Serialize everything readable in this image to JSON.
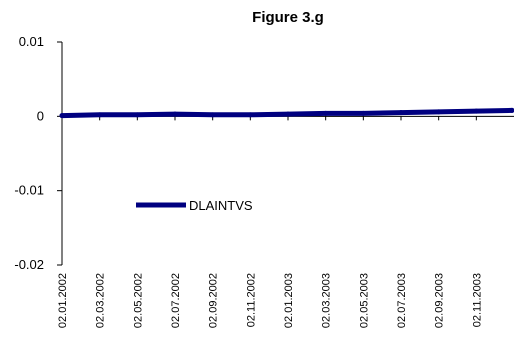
{
  "chart_data": {
    "type": "line",
    "title": "Figure 3.g",
    "xlabel": "",
    "ylabel": "",
    "ylim": [
      -0.02,
      0.01
    ],
    "yticks": [
      "0.01",
      "0",
      "-0.01",
      "-0.02"
    ],
    "yticks_values": [
      0.01,
      0,
      -0.01,
      -0.02
    ],
    "xtick_labels": [
      "02.01.2002",
      "02.03.2002",
      "02.05.2002",
      "02.07.2002",
      "02.09.2002",
      "02.11.2002",
      "02.01.2003",
      "02.03.2003",
      "02.05.2003",
      "02.07.2003",
      "02.09.2003",
      "02.11.2003"
    ],
    "grid": false,
    "legend_position": "center-left",
    "series": [
      {
        "name": "DLAINTVS",
        "color": "#000080",
        "x": [
          "02.01.2002",
          "02.03.2002",
          "02.05.2002",
          "02.07.2002",
          "02.09.2002",
          "02.11.2002",
          "02.01.2003",
          "02.03.2003",
          "02.05.2003",
          "02.07.2003",
          "02.09.2003",
          "02.11.2003",
          "2003-12"
        ],
        "values": [
          0.0001,
          0.0002,
          0.0002,
          0.0003,
          0.0002,
          0.0002,
          0.0003,
          0.0004,
          0.0004,
          0.0005,
          0.0006,
          0.0007,
          0.0008
        ]
      }
    ]
  }
}
